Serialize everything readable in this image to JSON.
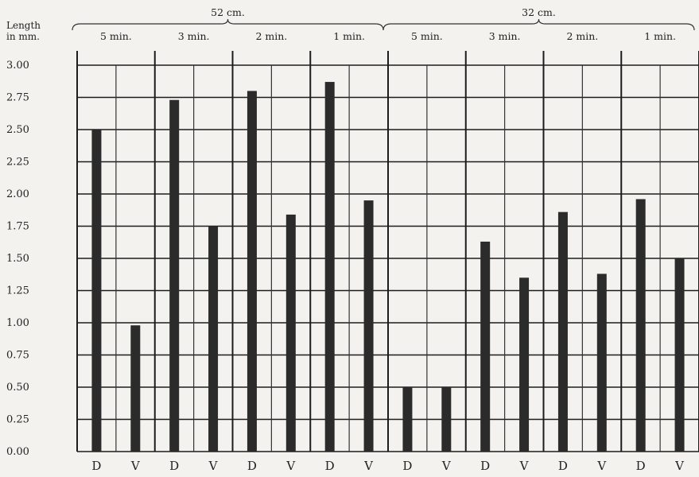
{
  "chart_data": {
    "type": "bar",
    "ylabel_lines": [
      "Length",
      "in mm."
    ],
    "ylim": [
      0,
      3
    ],
    "yticks": [
      "0.00",
      "0.25",
      "0.50",
      "0.75",
      "1.00",
      "1.25",
      "1.50",
      "1.75",
      "2.00",
      "2.25",
      "2.50",
      "2.75",
      "3.00"
    ],
    "grid": true,
    "super_groups": [
      {
        "label": "52 cm.",
        "span": [
          0,
          4
        ]
      },
      {
        "label": "32 cm.",
        "span": [
          4,
          8
        ]
      }
    ],
    "categories": [
      "5 min.",
      "3 min.",
      "2 min.",
      "1 min.",
      "5 min.",
      "3 min.",
      "2 min.",
      "1 min."
    ],
    "series": [
      {
        "name": "D",
        "values": [
          2.5,
          2.73,
          2.8,
          2.87,
          0.5,
          1.63,
          1.86,
          1.96
        ]
      },
      {
        "name": "V",
        "values": [
          0.98,
          1.75,
          1.84,
          1.95,
          0.5,
          1.35,
          1.38,
          1.5
        ]
      }
    ],
    "bar_color": "#2b2b2b"
  }
}
